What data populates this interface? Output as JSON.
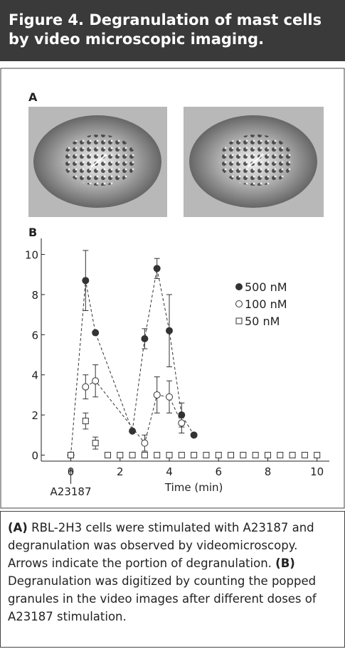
{
  "header": {
    "title": "Figure 4. Degranulation of mast cells by video microscopic imaging."
  },
  "panel_a": {
    "label": "A"
  },
  "chart_data": {
    "type": "scatter",
    "panel_label": "B",
    "x_label": "Time (min)",
    "xlim": [
      -1.2,
      10.5
    ],
    "ylim": [
      -0.3,
      10.8
    ],
    "xticks": [
      0,
      2,
      4,
      6,
      8,
      10
    ],
    "yticks": [
      0,
      2,
      4,
      6,
      8,
      10
    ],
    "legend": "upper right",
    "series": [
      {
        "name": "500 nM",
        "color": "#333333",
        "marker": "filled-circle",
        "line": true,
        "x": [
          0,
          0.6,
          1,
          2.5,
          3,
          3.5,
          4,
          4.5,
          5
        ],
        "values": [
          0,
          8.7,
          6.1,
          1.2,
          5.8,
          9.3,
          6.2,
          2,
          1
        ],
        "errors": [
          null,
          1.5,
          null,
          null,
          0.5,
          0.5,
          1.8,
          0.6,
          null
        ]
      },
      {
        "name": "100 nM",
        "color": "#333333",
        "marker": "circle",
        "line": true,
        "x": [
          0.6,
          1,
          3,
          3.5,
          4,
          4.5
        ],
        "values": [
          3.4,
          3.7,
          0.6,
          3.0,
          2.9,
          1.6
        ],
        "errors": [
          0.6,
          0.8,
          0.4,
          0.9,
          0.8,
          0.5
        ]
      },
      {
        "name": "50 nM",
        "color": "#333333",
        "marker": "square",
        "line": false,
        "x": [
          0,
          0.6,
          1,
          1.5,
          2,
          2.5,
          3,
          3.5,
          4,
          4.5,
          5,
          5.5,
          6,
          6.5,
          7,
          7.5,
          8,
          8.5,
          9,
          9.5,
          10
        ],
        "values": [
          0,
          1.7,
          0.6,
          0,
          0,
          0,
          0,
          0,
          0,
          0,
          0,
          0,
          0,
          0,
          0,
          0,
          0,
          0,
          0,
          0,
          0
        ],
        "errors": [
          null,
          0.4,
          0.3,
          null,
          null,
          null,
          null,
          null,
          null,
          null,
          null,
          null,
          null,
          null,
          null,
          null,
          null,
          null,
          null,
          null,
          null
        ]
      }
    ],
    "annotations": [
      {
        "text": "A23187",
        "x": 0
      }
    ]
  },
  "caption": {
    "a_label": "(A)",
    "a_text": " RBL-2H3 cells were stimulated with A23187 and degranulation was observed by videomicroscopy. Arrows indicate the portion of degranulation. ",
    "b_label": "(B)",
    "b_text": " Degranulation was digitized by counting the popped granules in the video images after different doses of A23187 stimulation."
  }
}
